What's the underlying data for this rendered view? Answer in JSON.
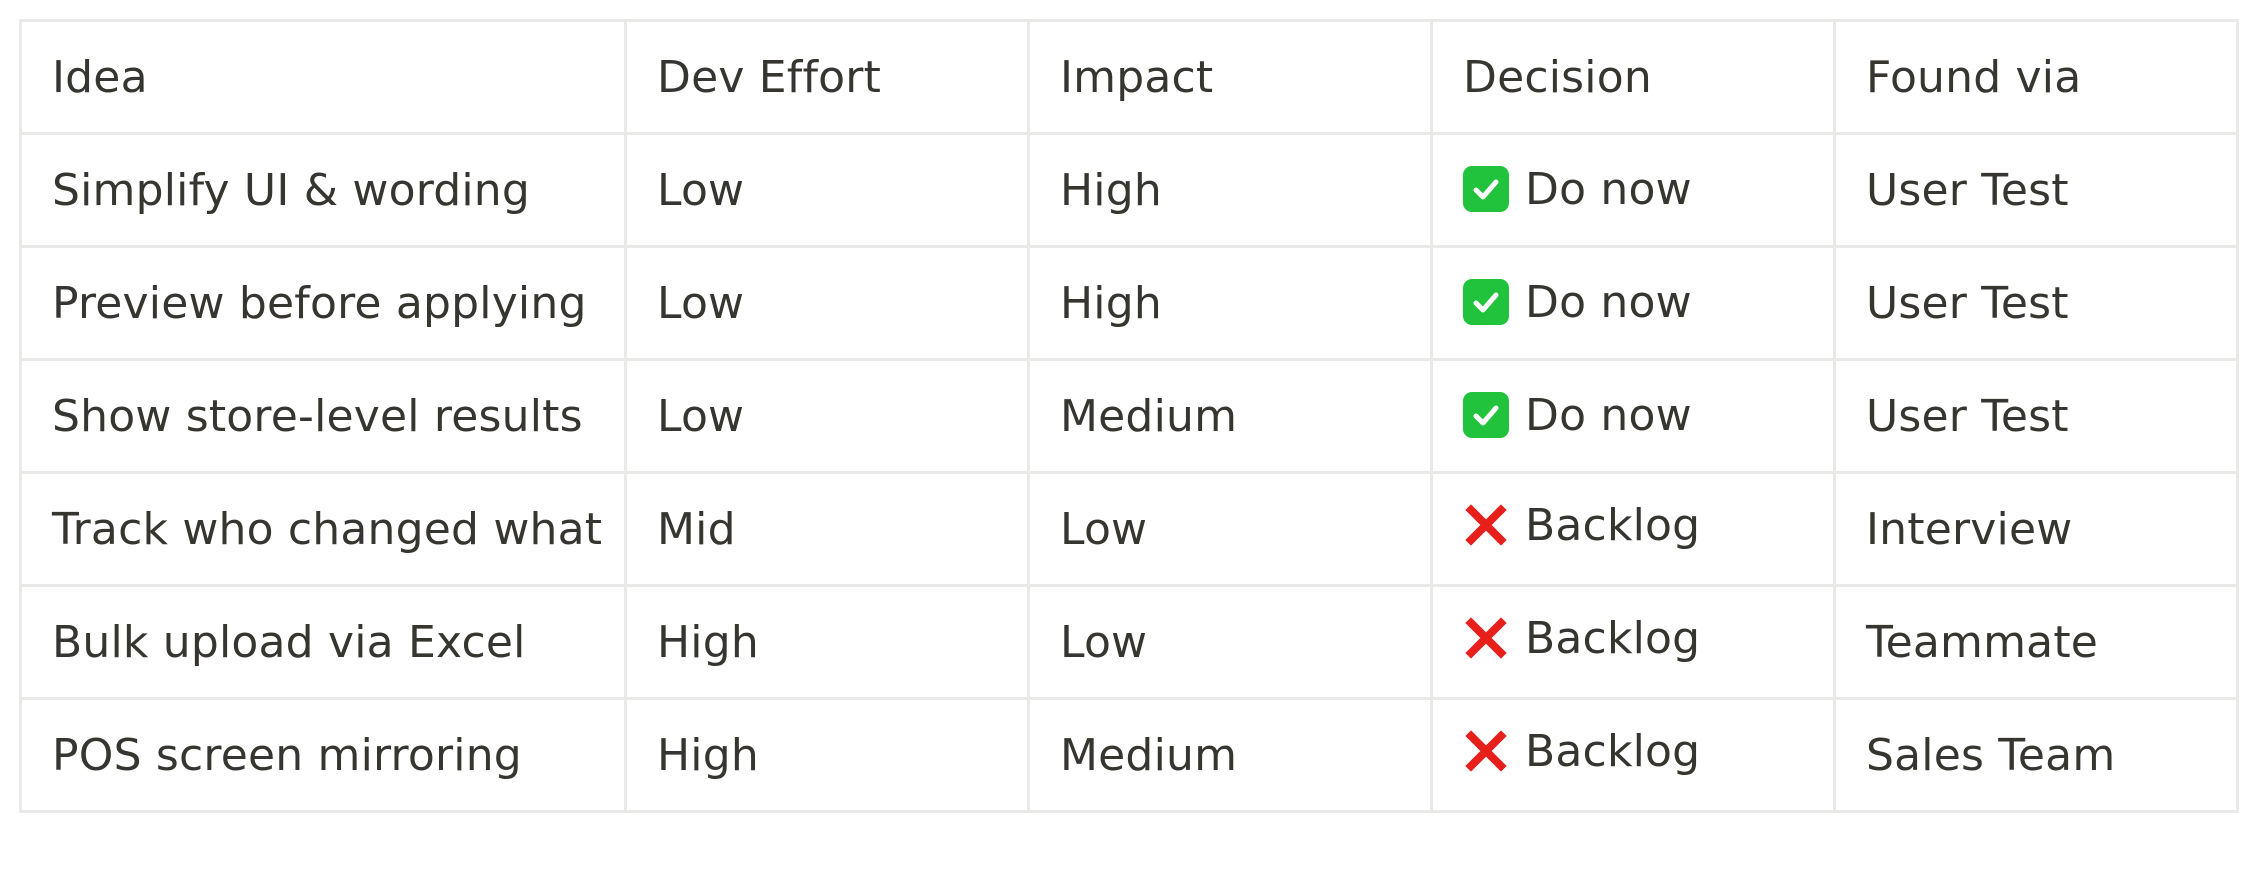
{
  "table": {
    "headers": [
      "Idea",
      "Dev Effort",
      "Impact",
      "Decision",
      "Found via"
    ],
    "rows": [
      {
        "idea": "Simplify UI & wording",
        "effort": "Low",
        "impact": "High",
        "decision": "Do now",
        "decision_icon": "check-icon",
        "found_via": "User Test"
      },
      {
        "idea": "Preview before applying",
        "effort": "Low",
        "impact": "High",
        "decision": "Do now",
        "decision_icon": "check-icon",
        "found_via": "User Test"
      },
      {
        "idea": "Show store-level results",
        "effort": "Low",
        "impact": "Medium",
        "decision": "Do now",
        "decision_icon": "check-icon",
        "found_via": "User Test"
      },
      {
        "idea": "Track who changed what",
        "effort": "Mid",
        "impact": "Low",
        "decision": "Backlog",
        "decision_icon": "cross-icon",
        "found_via": "Interview"
      },
      {
        "idea": "Bulk upload via Excel",
        "effort": "High",
        "impact": "Low",
        "decision": "Backlog",
        "decision_icon": "cross-icon",
        "found_via": "Teammate"
      },
      {
        "idea": "POS screen mirroring",
        "effort": "High",
        "impact": "Medium",
        "decision": "Backlog",
        "decision_icon": "cross-icon",
        "found_via": "Sales Team"
      }
    ]
  },
  "colors": {
    "text": "#37352f",
    "border": "#e9e9e7",
    "check": "#21c23c",
    "cross": "#e8201c"
  }
}
